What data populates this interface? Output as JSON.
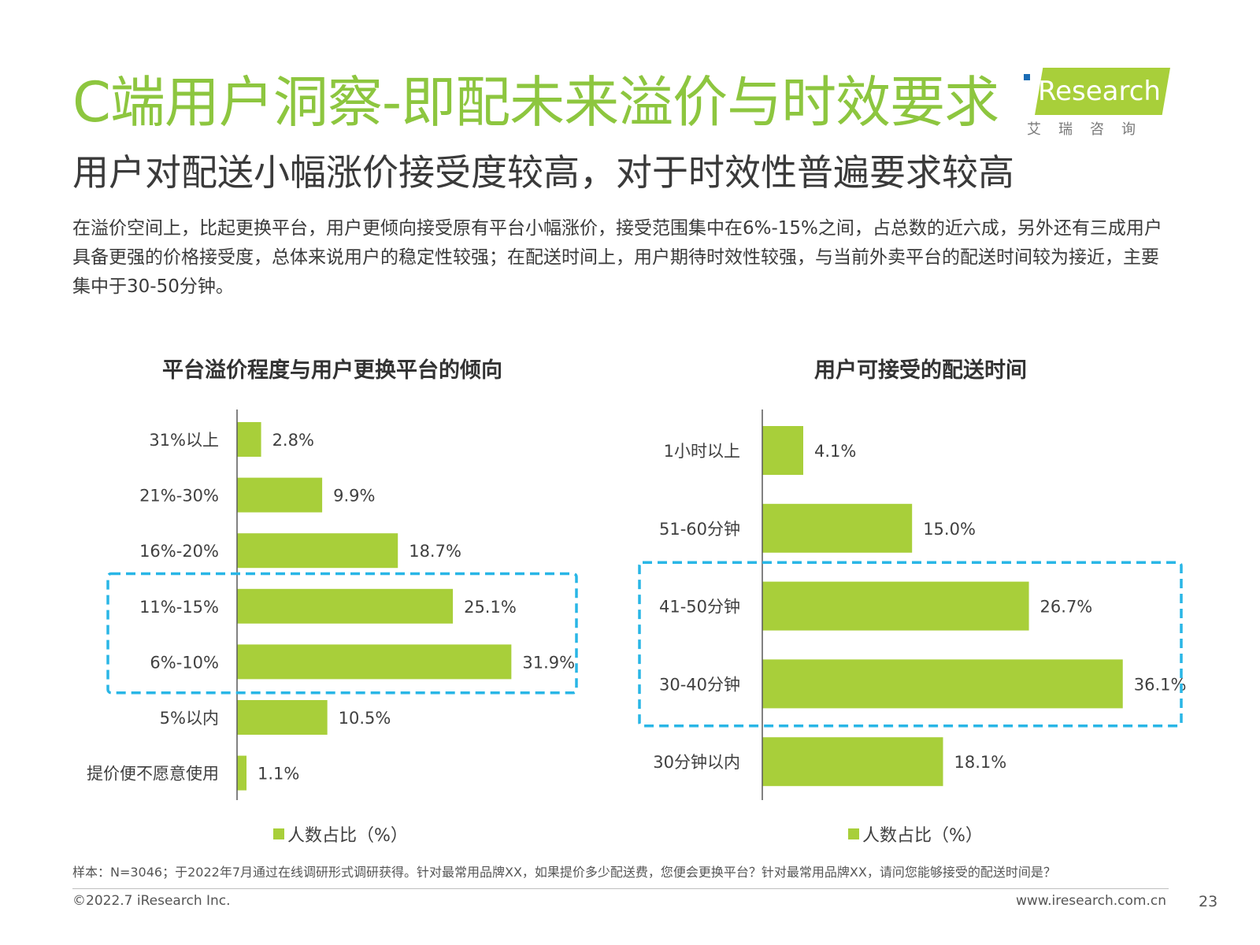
{
  "title": "C端用户洞察-即配未来溢价与时效要求",
  "subtitle": "用户对配送小幅涨价接受度较高，对于时效性普遍要求较高",
  "description": "在溢价空间上，比起更换平台，用户更倾向接受原有平台小幅涨价，接受范围集中在6%-15%之间，占总数的近六成，另外还有三成用户具备更强的价格接受度，总体来说用户的稳定性较强；在配送时间上，用户期待时效性较强，与当前外卖平台的配送时间较为接近，主要集中于30-50分钟。",
  "logo": {
    "brand": "Research",
    "brand_initial": "i",
    "sub": "艾瑞咨询"
  },
  "colors": {
    "accent": "#8dc63f",
    "bar": "#a8cf3a",
    "highlight": "#29b6e6"
  },
  "chart_data": [
    {
      "type": "bar",
      "orientation": "horizontal",
      "title": "平台溢价程度与用户更换平台的倾向",
      "categories": [
        "31%以上",
        "21%-30%",
        "16%-20%",
        "11%-15%",
        "6%-10%",
        "5%以内",
        "提价便不愿意使用"
      ],
      "series": [
        {
          "name": "人数占比（%）",
          "values": [
            2.8,
            9.9,
            18.7,
            25.1,
            31.9,
            10.5,
            1.1
          ]
        }
      ],
      "value_labels": [
        "2.8%",
        "9.9%",
        "18.7%",
        "25.1%",
        "31.9%",
        "10.5%",
        "1.1%"
      ],
      "xlim": [
        0,
        36
      ],
      "highlight": [
        "11%-15%",
        "6%-10%"
      ],
      "legend": "bottom"
    },
    {
      "type": "bar",
      "orientation": "horizontal",
      "title": "用户可接受的配送时间",
      "categories": [
        "1小时以上",
        "51-60分钟",
        "41-50分钟",
        "30-40分钟",
        "30分钟以内"
      ],
      "series": [
        {
          "name": "人数占比（%）",
          "values": [
            4.1,
            15.0,
            26.7,
            36.1,
            18.1
          ]
        }
      ],
      "value_labels": [
        "4.1%",
        "15.0%",
        "26.7%",
        "36.1%",
        "18.1%"
      ],
      "xlim": [
        0,
        36.1
      ],
      "highlight": [
        "41-50分钟",
        "30-40分钟"
      ],
      "legend": "bottom"
    }
  ],
  "footnote": "样本：N=3046；于2022年7月通过在线调研形式调研获得。针对最常用品牌XX，如果提价多少配送费，您便会更换平台？针对最常用品牌XX，请问您能够接受的配送时间是？",
  "copyright": "©2022.7 iResearch Inc.",
  "website": "www.iresearch.com.cn",
  "page_number": "23"
}
